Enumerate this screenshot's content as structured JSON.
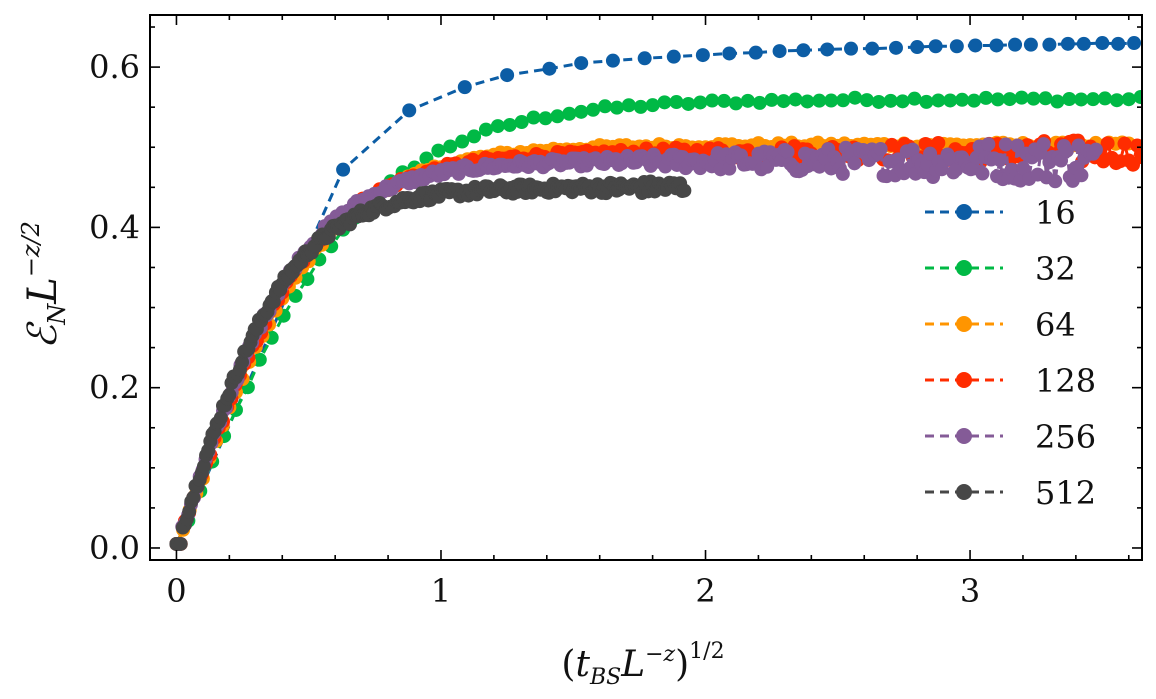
{
  "chart_data": {
    "type": "line",
    "title": "",
    "xlabel": "(t_BS L^-z)^1/2",
    "ylabel": "E_N L^-z/2",
    "xlabel_parts": {
      "open": "(",
      "t": "t",
      "t_sub": "BS",
      "L": "L",
      "L_sup": "−z",
      "close": ")",
      "outer_sup": "1/2"
    },
    "ylabel_parts": {
      "E": "ℰ",
      "E_sub": "N",
      "L": "L",
      "L_sup": "−z/2"
    },
    "xlim": [
      -0.1,
      3.65
    ],
    "ylim": [
      -0.015,
      0.665
    ],
    "xticks": [
      0,
      1,
      2,
      3
    ],
    "xtick_labels": [
      "0",
      "1",
      "2",
      "3"
    ],
    "yticks": [
      0.0,
      0.2,
      0.4,
      0.6
    ],
    "ytick_labels": [
      "0.0",
      "0.2",
      "0.4",
      "0.6"
    ],
    "legend_position": "lower-right",
    "series": [
      {
        "name": "16",
        "color": "#0C5DA5",
        "x": [
          0.0,
          0.63,
          0.88,
          1.09,
          1.25,
          1.41,
          1.53,
          1.65,
          1.77,
          1.88,
          1.99,
          2.09,
          2.19,
          2.28,
          2.37,
          2.46,
          2.55,
          2.63,
          2.72,
          2.8,
          2.87,
          2.95,
          3.02,
          3.1,
          3.17,
          3.23,
          3.3,
          3.37,
          3.43,
          3.5,
          3.56,
          3.62
        ],
        "y": [
          0.005,
          0.472,
          0.546,
          0.575,
          0.59,
          0.598,
          0.605,
          0.608,
          0.611,
          0.613,
          0.615,
          0.617,
          0.618,
          0.62,
          0.621,
          0.622,
          0.623,
          0.623,
          0.624,
          0.625,
          0.626,
          0.626,
          0.627,
          0.627,
          0.628,
          0.628,
          0.628,
          0.629,
          0.629,
          0.63,
          0.629,
          0.63
        ]
      },
      {
        "name": "32",
        "color": "#00B945",
        "xmax": 3.65,
        "step": 0.045,
        "ymax": 0.56,
        "rise": 3.3,
        "shoulder_k": 0,
        "noise": 0.003
      },
      {
        "name": "64",
        "color": "#FF9500",
        "xmax": 3.6,
        "step": 0.025,
        "ymax": 0.503,
        "rise": 3.8,
        "shoulder_k": 0,
        "noise": 0.003
      },
      {
        "name": "128",
        "color": "#FF2C00",
        "xmax": 3.65,
        "step": 0.016,
        "ymax": 0.494,
        "rise": 4.0,
        "shoulder_k": 0,
        "noise": 0.004,
        "noise_grow": 0.003
      },
      {
        "name": "256",
        "color": "#845B97",
        "xmax": 3.48,
        "step": 0.011,
        "ymax": 0.483,
        "rise": 4.2,
        "shoulder_k": 0,
        "noise": 0.005,
        "noise_grow": 0.006
      },
      {
        "name": "512",
        "color": "#474747",
        "xmax": 1.92,
        "step": 0.008,
        "ymax": 0.45,
        "rise": 4.4,
        "shoulder_k": 0,
        "noise": 0.006,
        "noise_grow": 0.004
      }
    ]
  }
}
